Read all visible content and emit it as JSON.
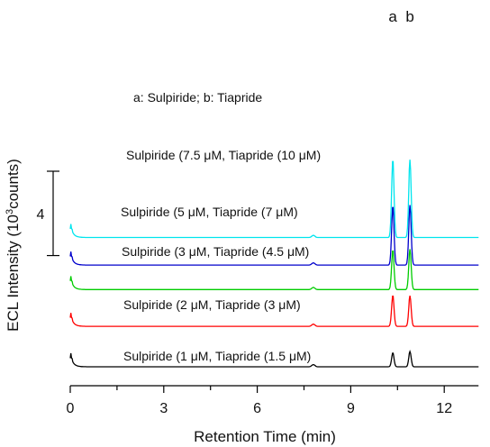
{
  "chart_data": {
    "type": "line",
    "xlabel": "Retention Time (min)",
    "ylabel": {
      "pre": "ECL Intensity (10",
      "sup": "3",
      "post": "counts)"
    },
    "xlim": [
      0,
      13.1
    ],
    "x_ticks": [
      0,
      3,
      6,
      9,
      12
    ],
    "x_minor_step": 1.5,
    "peak_labels": [
      "a",
      "b"
    ],
    "legend_note": "a: Sulpiride; b: Tiapride",
    "scale_bar": {
      "label": "4",
      "units": 4
    },
    "peaks": {
      "a_time": 10.35,
      "b_time": 10.9,
      "minor_time": 7.8
    },
    "series": [
      {
        "label": {
          "pre1": "Sulpiride (1 ",
          "mid": ", Tiapride (1.5 ",
          "post": ")"
        },
        "color": "#000000",
        "baseline": 0.0,
        "peak_a": 1.15,
        "peak_b": 1.25
      },
      {
        "label": {
          "pre1": "Sulpiride (2 ",
          "mid": ", Tiapride (3 ",
          "post": ")"
        },
        "color": "#ff0000",
        "baseline": 3.3,
        "peak_a": 2.55,
        "peak_b": 2.5
      },
      {
        "label": {
          "pre1": "Sulpiride (3 ",
          "mid": ", Tiapride (4.5 ",
          "post": ")"
        },
        "color": "#00cc00",
        "baseline": 6.3,
        "peak_a": 3.25,
        "peak_b": 3.3
      },
      {
        "label": {
          "pre1": "Sulpiride (5 ",
          "mid": ", Tiapride (7 ",
          "post": ")"
        },
        "color": "#0000cc",
        "baseline": 8.3,
        "peak_a": 4.85,
        "peak_b": 4.9
      },
      {
        "label": {
          "pre1": "Sulpiride (7.5 ",
          "mid": ", Tiapride (10 ",
          "post": ")"
        },
        "color": "#00e5ee",
        "baseline": 10.55,
        "peak_a": 6.4,
        "peak_b": 6.35
      }
    ],
    "mu_symbol": "μ",
    "molar_unit": "M"
  }
}
